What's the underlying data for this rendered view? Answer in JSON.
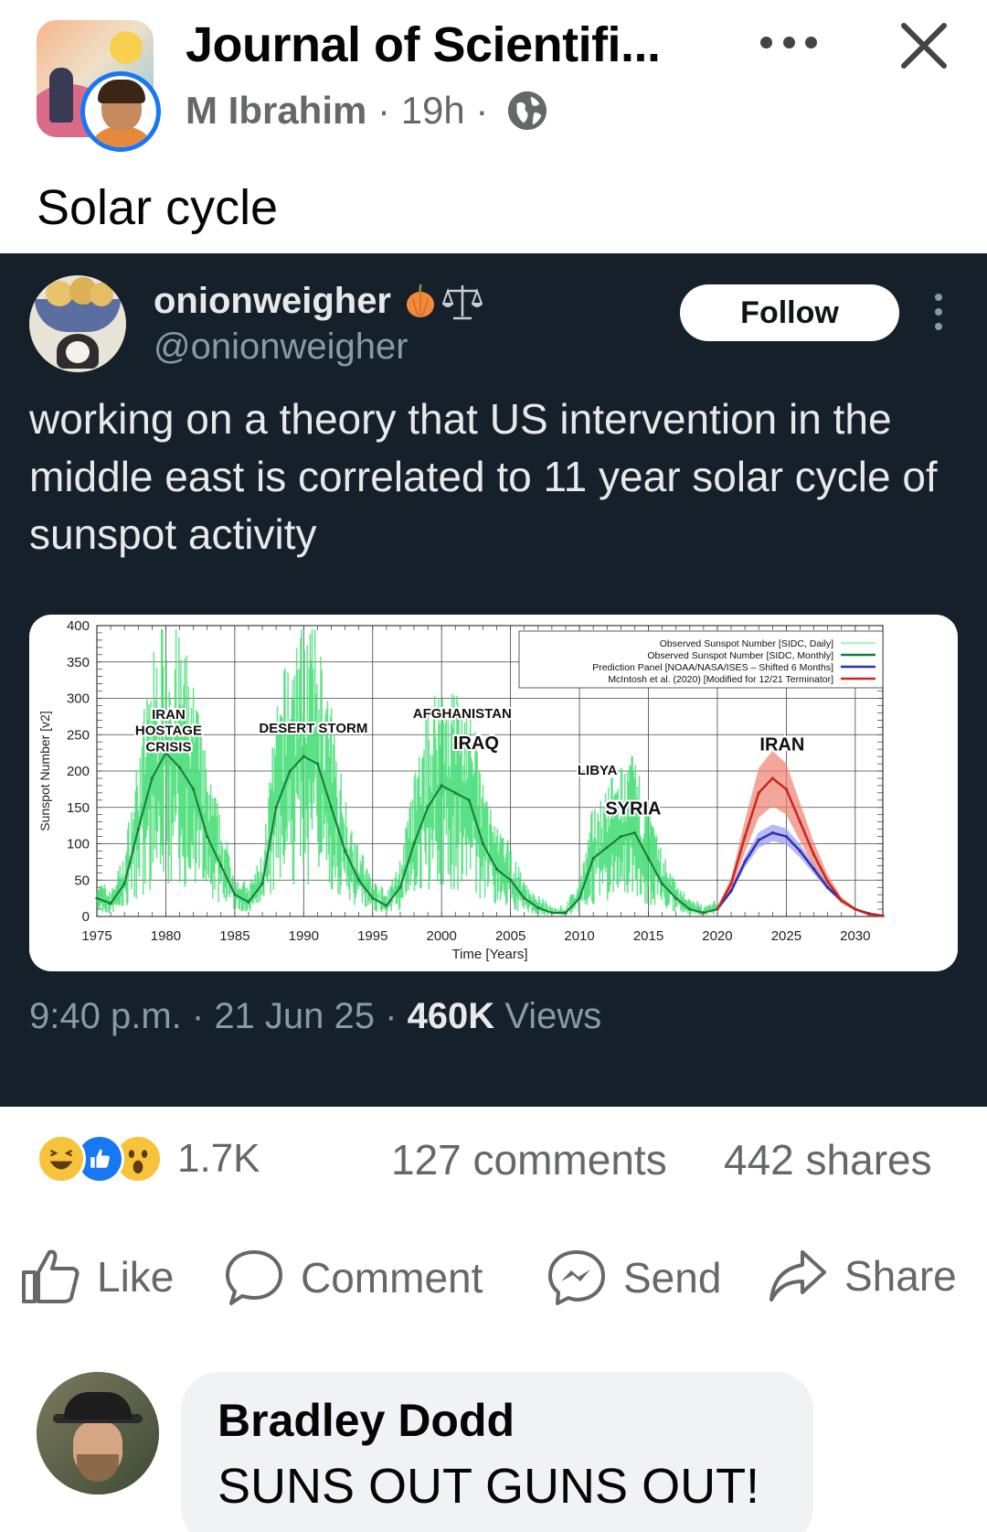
{
  "post": {
    "group_name": "Journal of Scientifi...",
    "author": "M Ibrahim",
    "time": "19h",
    "separator": " · ",
    "text": "Solar cycle"
  },
  "icons": {
    "header": [
      "group-avatar",
      "globe-icon",
      "more-icon",
      "close-icon"
    ],
    "actions": [
      "like-icon",
      "comment-icon",
      "messenger-icon",
      "share-icon"
    ],
    "reactions": [
      "haha-reaction-icon",
      "like-reaction-icon",
      "wow-reaction-icon"
    ]
  },
  "tweet": {
    "name": "onionweigher",
    "handle": "@onionweigher",
    "follow_label": "Follow",
    "text": "working on a theory that US intervention in the middle east is correlated to 11 year solar cycle of sunspot activity",
    "time": "9:40 p.m.",
    "date": "21 Jun 25",
    "views_count": "460K",
    "views_label": "Views",
    "sep": " · "
  },
  "chart_data": {
    "type": "line",
    "xlabel": "Time [Years]",
    "ylabel": "Sunspot Number [v2]",
    "xlim": [
      1975,
      2032
    ],
    "ylim": [
      0,
      400
    ],
    "x_ticks": [
      "1975",
      "1980",
      "1985",
      "1990",
      "1995",
      "2000",
      "2005",
      "2010",
      "2015",
      "2020",
      "2025",
      "2030"
    ],
    "y_ticks": [
      "0",
      "50",
      "100",
      "150",
      "200",
      "250",
      "300",
      "350",
      "400"
    ],
    "grid": true,
    "legend_position": "top-right",
    "legend": [
      {
        "label": "Observed Sunspot Number [SIDC, Daily]",
        "color": "#b8f0c8"
      },
      {
        "label": "Observed Sunspot Number [SIDC, Monthly]",
        "color": "#1a7a3a"
      },
      {
        "label": "Prediction Panel [NOAA/NASA/ISES – Shifted 6 Months]",
        "color": "#2f2fb0"
      },
      {
        "label": "McIntosh et al. (2020) [Modified for 12/21 Terminator]",
        "color": "#c8281e"
      }
    ],
    "annotations": [
      {
        "label": "IRAN",
        "x": 1980.2,
        "y": 272
      },
      {
        "label": "HOSTAGE",
        "x": 1980.2,
        "y": 250
      },
      {
        "label": "CRISIS",
        "x": 1980.2,
        "y": 227
      },
      {
        "label": "DESERT STORM",
        "x": 1990.7,
        "y": 253
      },
      {
        "label": "AFGHANISTAN",
        "x": 2001.5,
        "y": 273
      },
      {
        "label": "IRAQ",
        "x": 2002.5,
        "y": 230
      },
      {
        "label": "LIBYA",
        "x": 2011.3,
        "y": 195
      },
      {
        "label": "SYRIA",
        "x": 2013.9,
        "y": 140
      },
      {
        "label": "IRAN",
        "x": 2024.7,
        "y": 228
      }
    ],
    "series": [
      {
        "name": "Observed Sunspot Number [SIDC, Monthly]",
        "x": [
          1975,
          1976,
          1977,
          1978,
          1979,
          1980,
          1981,
          1982,
          1983,
          1984,
          1985,
          1986,
          1987,
          1988,
          1989,
          1990,
          1991,
          1992,
          1993,
          1994,
          1995,
          1996,
          1997,
          1998,
          1999,
          2000,
          2001,
          2002,
          2003,
          2004,
          2005,
          2006,
          2007,
          2008,
          2009,
          2010,
          2011,
          2012,
          2013,
          2014,
          2015,
          2016,
          2017,
          2018,
          2019,
          2020
        ],
        "y": [
          25,
          18,
          45,
          120,
          190,
          225,
          205,
          175,
          110,
          70,
          30,
          20,
          45,
          150,
          200,
          220,
          210,
          150,
          90,
          50,
          25,
          15,
          40,
          100,
          150,
          180,
          170,
          160,
          100,
          65,
          50,
          25,
          12,
          5,
          5,
          25,
          80,
          95,
          110,
          115,
          80,
          45,
          25,
          10,
          5,
          10
        ]
      },
      {
        "name": "Prediction Panel [NOAA/NASA/ISES – Shifted 6 Months]",
        "x": [
          2020,
          2021,
          2022,
          2023,
          2024,
          2025,
          2026,
          2027,
          2028,
          2029,
          2030,
          2031,
          2032
        ],
        "y": [
          10,
          35,
          75,
          105,
          115,
          110,
          90,
          65,
          40,
          22,
          10,
          4,
          1
        ]
      },
      {
        "name": "McIntosh et al. (2020) [Modified for 12/21 Terminator]",
        "x": [
          2020,
          2021,
          2022,
          2023,
          2024,
          2025,
          2026,
          2027,
          2028,
          2029,
          2030,
          2031,
          2032
        ],
        "y": [
          10,
          45,
          110,
          170,
          190,
          175,
          130,
          85,
          48,
          22,
          10,
          3,
          1
        ]
      }
    ]
  },
  "engagement": {
    "reaction_count": "1.7K",
    "comments": "127 comments",
    "shares": "442 shares"
  },
  "actions": {
    "like": "Like",
    "comment": "Comment",
    "send": "Send",
    "share": "Share"
  },
  "comment": {
    "name": "Bradley Dodd",
    "text": "SUNS OUT GUNS OUT!"
  }
}
